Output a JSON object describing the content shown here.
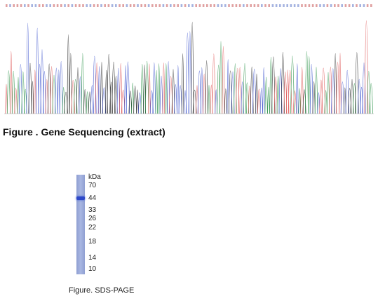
{
  "sequencing": {
    "title": "Figure . Gene Sequencing (extract)",
    "trace_colors": {
      "A": "#3a9a55",
      "C": "#4a5fd0",
      "G": "#333333",
      "T": "#e06060"
    }
  },
  "sds_page": {
    "unit": "kDa",
    "markers": [
      "70",
      "44",
      "33",
      "26",
      "22",
      "18",
      "14",
      "10"
    ],
    "caption": "Figure. SDS-PAGE",
    "lane_color": "#a9b7e2",
    "band_color": "#2d48c8"
  }
}
